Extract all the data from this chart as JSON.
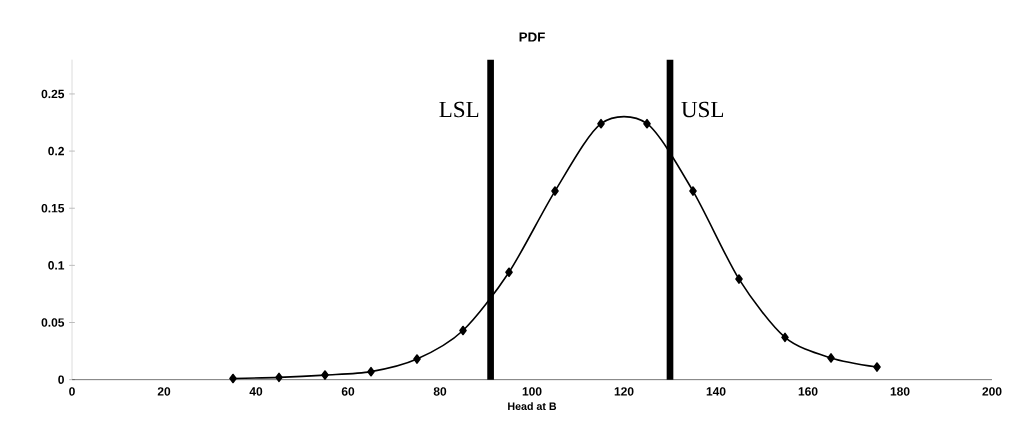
{
  "chart_data": {
    "type": "line",
    "title": "PDF",
    "xlabel": "Head at B",
    "x": [
      35,
      45,
      55,
      65,
      75,
      85,
      95,
      105,
      115,
      125,
      135,
      145,
      155,
      165,
      175
    ],
    "series": [
      {
        "color": "#000000",
        "values": [
          0.001,
          0.002,
          0.004,
          0.007,
          0.018,
          0.043,
          0.094,
          0.165,
          0.224,
          0.224,
          0.165,
          0.088,
          0.037,
          0.019,
          0.011
        ]
      }
    ],
    "xlim": [
      0,
      200
    ],
    "ylim": [
      0,
      0.28
    ],
    "xticks": [
      0,
      20,
      40,
      60,
      80,
      100,
      120,
      140,
      160,
      180,
      200
    ],
    "yticks": [
      0,
      0.05,
      0.1,
      0.15,
      0.2,
      0.25
    ],
    "ref_lines": [
      {
        "axis": "x",
        "value": 91,
        "label": "LSL",
        "color": "#000000"
      },
      {
        "axis": "x",
        "value": 130,
        "label": "USL",
        "color": "#000000"
      }
    ],
    "grid": false,
    "marker": "diamond",
    "line_style": "solid"
  }
}
